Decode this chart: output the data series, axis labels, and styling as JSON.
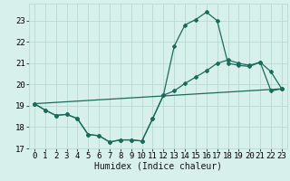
{
  "title": "",
  "xlabel": "Humidex (Indice chaleur)",
  "ylabel": "",
  "background_color": "#d8f0ec",
  "grid_color": "#b8d8d4",
  "line_color": "#1a6b5a",
  "xlim": [
    -0.5,
    23.5
  ],
  "ylim": [
    17,
    23.8
  ],
  "yticks": [
    17,
    18,
    19,
    20,
    21,
    22,
    23
  ],
  "xticks": [
    0,
    1,
    2,
    3,
    4,
    5,
    6,
    7,
    8,
    9,
    10,
    11,
    12,
    13,
    14,
    15,
    16,
    17,
    18,
    19,
    20,
    21,
    22,
    23
  ],
  "series1_x": [
    0,
    1,
    2,
    3,
    4,
    5,
    6,
    7,
    8,
    9,
    10,
    11,
    12,
    13,
    14,
    15,
    16,
    17,
    18,
    19,
    20,
    21,
    22,
    23
  ],
  "series1_y": [
    19.1,
    18.8,
    18.55,
    18.6,
    18.4,
    17.65,
    17.6,
    17.3,
    17.4,
    17.4,
    17.35,
    18.4,
    19.5,
    21.8,
    22.8,
    23.05,
    23.4,
    23.0,
    21.0,
    20.9,
    20.85,
    21.05,
    20.6,
    19.8
  ],
  "series2_x": [
    0,
    1,
    2,
    3,
    4,
    5,
    6,
    7,
    8,
    9,
    10,
    11,
    12,
    13,
    14,
    15,
    16,
    17,
    18,
    19,
    20,
    21,
    22,
    23
  ],
  "series2_y": [
    19.1,
    18.8,
    18.55,
    18.6,
    18.4,
    17.65,
    17.6,
    17.3,
    17.4,
    17.4,
    17.35,
    18.4,
    19.5,
    19.7,
    20.05,
    20.35,
    20.65,
    21.0,
    21.15,
    21.0,
    20.9,
    21.05,
    19.7,
    19.8
  ],
  "series3_x": [
    0,
    23
  ],
  "series3_y": [
    19.1,
    19.8
  ],
  "markersize": 2.0,
  "linewidth": 0.9,
  "xlabel_fontsize": 7,
  "tick_fontsize": 6.5
}
